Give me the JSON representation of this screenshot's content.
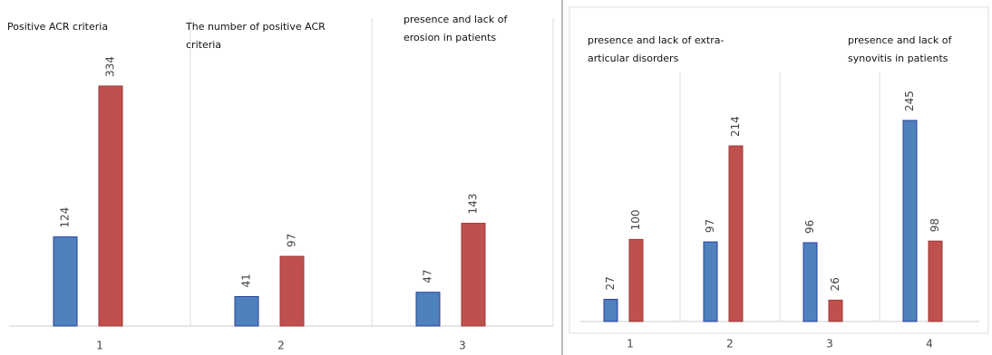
{
  "chart_data": [
    {
      "type": "bar",
      "annotations": [
        "Positive ACR criteria",
        "The number of positive ACR criteria",
        "presence and lack of erosion in patients"
      ],
      "categories": [
        "1",
        "2",
        "3"
      ],
      "series": [
        {
          "color": "#4f81bd",
          "values": [
            124,
            41,
            47
          ]
        },
        {
          "color": "#c0504d",
          "values": [
            334,
            97,
            143
          ]
        }
      ]
    },
    {
      "type": "bar",
      "annotations": [
        "presence and lack of extra-articular disorders",
        "presence and lack of synovitis in patients"
      ],
      "categories": [
        "1",
        "2",
        "3",
        "4"
      ],
      "series": [
        {
          "color": "#4f81bd",
          "values": [
            27,
            97,
            96,
            245
          ]
        },
        {
          "color": "#c0504d",
          "values": [
            100,
            214,
            26,
            98
          ]
        }
      ]
    }
  ]
}
